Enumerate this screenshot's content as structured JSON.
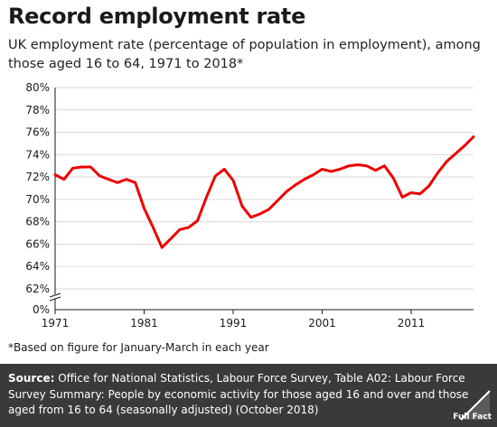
{
  "title": "Record employment rate",
  "subtitle": "UK employment rate (percentage of population in employment), among those aged 16 to 64, 1971 to 2018*",
  "footnote": "*Based on figure for January-March in each year",
  "source": {
    "label": "Source:",
    "text": " Office for National Statistics, Labour Force Survey, Table A02: Labour Force Survey Summary: People by economic activity for those aged 16 and over and those aged from 16 to 64 (seasonally adjusted) (October 2018)"
  },
  "logo": "Full Fact",
  "chart_data": {
    "type": "line",
    "title": "Record employment rate",
    "ylim": [
      60,
      80
    ],
    "axis_break": true,
    "yticks": [
      0,
      62,
      64,
      66,
      68,
      70,
      72,
      74,
      76,
      78,
      80
    ],
    "ytick_labels": [
      "0%",
      "62%",
      "64%",
      "66%",
      "68%",
      "70%",
      "72%",
      "74%",
      "76%",
      "78%",
      "80%"
    ],
    "xticks": [
      1971,
      1981,
      1991,
      2001,
      2011
    ],
    "xlim": [
      1971,
      2018
    ],
    "grid": "horizontal",
    "legend": "none",
    "series": [
      {
        "color": "#ee0000",
        "x": [
          1971,
          1972,
          1973,
          1974,
          1975,
          1976,
          1977,
          1978,
          1979,
          1980,
          1981,
          1982,
          1983,
          1984,
          1985,
          1986,
          1987,
          1988,
          1989,
          1990,
          1991,
          1992,
          1993,
          1994,
          1995,
          1996,
          1997,
          1998,
          1999,
          2000,
          2001,
          2002,
          2003,
          2004,
          2005,
          2006,
          2007,
          2008,
          2009,
          2010,
          2011,
          2012,
          2013,
          2014,
          2015,
          2016,
          2017,
          2018
        ],
        "y": [
          72.2,
          71.8,
          72.8,
          72.9,
          72.9,
          72.1,
          71.8,
          71.5,
          71.8,
          71.5,
          69.2,
          67.5,
          65.7,
          66.5,
          67.3,
          67.5,
          68.1,
          70.2,
          72.1,
          72.7,
          71.7,
          69.4,
          68.4,
          68.7,
          69.1,
          69.9,
          70.7,
          71.3,
          71.8,
          72.2,
          72.7,
          72.5,
          72.7,
          73.0,
          73.1,
          73.0,
          72.6,
          73.0,
          71.9,
          70.2,
          70.6,
          70.5,
          71.2,
          72.4,
          73.4,
          74.1,
          74.8,
          75.6
        ]
      }
    ]
  }
}
